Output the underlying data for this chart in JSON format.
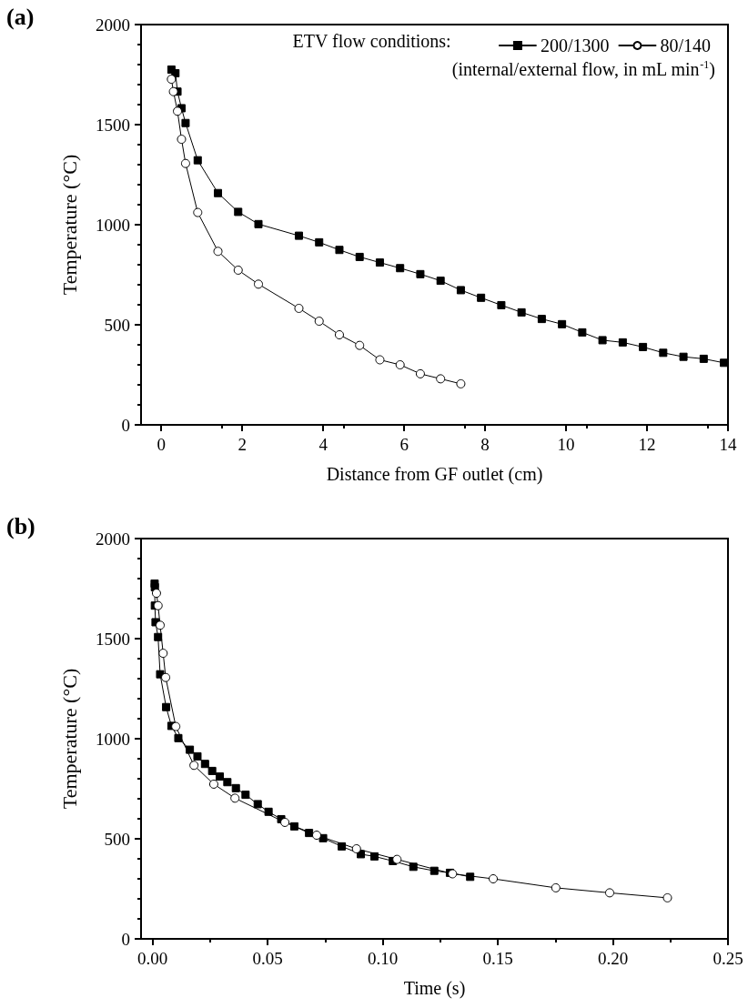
{
  "chart_data": [
    {
      "type": "line",
      "title": "(a)",
      "xlabel": "Distance from GF outlet (cm)",
      "ylabel": "Temperature (°C)",
      "legend_title": "ETV flow conditions:",
      "annotations": [
        "(internal/external flow, in mL min$^{-1}$)"
      ],
      "series": [
        {
          "name": "200/1300",
          "color": "#000000",
          "marker": "square",
          "x": [
            0.25,
            0.35,
            0.4,
            0.5,
            0.6,
            0.9,
            1.4,
            1.9,
            2.4,
            3.4,
            3.9,
            4.4,
            4.9,
            5.4,
            5.9,
            6.4,
            6.9,
            7.4,
            7.9,
            8.4,
            8.9,
            9.4,
            9.9,
            10.4,
            10.9,
            11.4,
            11.9,
            12.4,
            12.9,
            13.4,
            13.9
          ],
          "values": [
            1775,
            1757,
            1665,
            1582,
            1508,
            1322,
            1158,
            1064,
            1003,
            945,
            912,
            874,
            839,
            811,
            783,
            753,
            720,
            673,
            635,
            598,
            562,
            529,
            503,
            462,
            423,
            412,
            389,
            360,
            340,
            330,
            310
          ]
        },
        {
          "name": "80/140",
          "color": "#000000",
          "marker": "circle",
          "x": [
            0.25,
            0.3,
            0.4,
            0.5,
            0.6,
            0.9,
            1.4,
            1.9,
            2.4,
            3.4,
            3.9,
            4.4,
            4.9,
            5.4,
            5.9,
            6.4,
            6.9,
            7.4
          ],
          "values": [
            1727,
            1665,
            1567,
            1427,
            1306,
            1061,
            867,
            773,
            703,
            582,
            518,
            450,
            397,
            325,
            300,
            255,
            230,
            205
          ]
        }
      ],
      "xlim": [
        -0.5,
        14
      ],
      "xticks": [
        0,
        2,
        4,
        6,
        8,
        10,
        12,
        14
      ],
      "ylim": [
        0,
        2000
      ],
      "yticks": [
        0,
        500,
        1000,
        1500,
        2000
      ],
      "grid": false,
      "legend": "top right",
      "line_style": "solid"
    },
    {
      "type": "line",
      "title": "(b)",
      "xlabel": "Time (s)",
      "ylabel": "Temperature (°C)",
      "series": [
        {
          "color": "#000000",
          "marker": "square",
          "x": [
            0.0009,
            0.001,
            0.001,
            0.0013,
            0.0024,
            0.0033,
            0.0059,
            0.0082,
            0.0112,
            0.0162,
            0.0195,
            0.0228,
            0.0259,
            0.0292,
            0.0325,
            0.0362,
            0.0404,
            0.0457,
            0.0504,
            0.0559,
            0.0616,
            0.068,
            0.0741,
            0.0822,
            0.0905,
            0.0964,
            0.1044,
            0.1133,
            0.1224,
            0.1292,
            0.138
          ],
          "values": [
            1775,
            1757,
            1665,
            1582,
            1508,
            1322,
            1158,
            1064,
            1003,
            945,
            912,
            874,
            839,
            811,
            783,
            753,
            720,
            673,
            635,
            598,
            562,
            529,
            503,
            462,
            423,
            412,
            389,
            360,
            340,
            330,
            310
          ]
        },
        {
          "color": "#000000",
          "marker": "circle",
          "x": [
            0.0017,
            0.0024,
            0.0033,
            0.0046,
            0.0057,
            0.0101,
            0.018,
            0.0266,
            0.0358,
            0.0575,
            0.0713,
            0.0886,
            0.1062,
            0.1303,
            0.148,
            0.1752,
            0.1986,
            0.2237
          ],
          "values": [
            1727,
            1665,
            1567,
            1427,
            1306,
            1061,
            867,
            773,
            703,
            582,
            518,
            450,
            397,
            325,
            300,
            255,
            230,
            205
          ]
        }
      ],
      "xlim": [
        -0.005,
        0.25
      ],
      "xticks": [
        {
          "value": 0,
          "label": "0.00"
        },
        {
          "value": 0.05,
          "label": "0.05"
        },
        {
          "value": 0.1,
          "label": "0.10"
        },
        {
          "value": 0.15,
          "label": "0.15"
        },
        {
          "value": 0.2,
          "label": "0.20"
        },
        {
          "value": 0.25,
          "label": "0.25"
        }
      ],
      "ylim": [
        0,
        2000
      ],
      "yticks": [
        0,
        500,
        1000,
        1500,
        2000
      ],
      "grid": false,
      "line_style": "solid"
    }
  ]
}
